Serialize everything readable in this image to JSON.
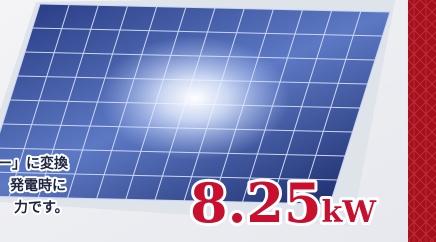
{
  "caption": {
    "lines": [
      "ー」に変換",
      "発電時に",
      "力です。"
    ]
  },
  "figure": {
    "value": "8.25",
    "unit": "kW"
  }
}
